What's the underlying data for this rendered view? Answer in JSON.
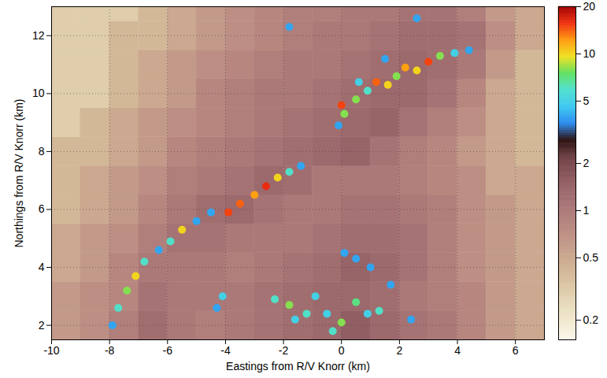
{
  "chart_data": {
    "type": "heatmap",
    "x_label": "Eastings from R/V Knorr (km)",
    "y_label": "Northings from R/V Knorr (km)",
    "xlim": [
      -10,
      7
    ],
    "ylim": [
      1.5,
      13
    ],
    "xticks": [
      -10,
      -8,
      -6,
      -4,
      -2,
      0,
      2,
      4,
      6
    ],
    "yticks": [
      2,
      4,
      6,
      8,
      10,
      12
    ],
    "grid": true,
    "cells": {
      "x_edges": [
        -10,
        -9,
        -8,
        -7,
        -6,
        -5,
        -4,
        -3,
        -2,
        -1,
        0,
        1,
        2,
        3,
        4,
        5,
        6,
        7
      ],
      "y_edges": [
        1.5,
        2.5,
        3.5,
        4.5,
        5.5,
        6.5,
        7.5,
        8.5,
        9.5,
        10.5,
        11.5,
        12.5,
        13
      ],
      "values": [
        [
          0.6,
          0.7,
          0.9,
          1.2,
          1.0,
          0.9,
          1.0,
          1.1,
          1.2,
          1.3,
          1.5,
          1.3,
          1.1,
          1.0,
          0.8,
          0.6,
          0.5
        ],
        [
          0.6,
          0.7,
          0.8,
          1.1,
          1.0,
          1.0,
          1.0,
          1.1,
          1.2,
          1.3,
          1.3,
          1.2,
          1.0,
          0.9,
          0.8,
          0.6,
          0.5
        ],
        [
          0.5,
          0.6,
          0.8,
          1.0,
          1.0,
          1.0,
          0.9,
          1.0,
          1.1,
          1.2,
          1.4,
          1.3,
          1.1,
          0.9,
          0.7,
          0.6,
          0.5
        ],
        [
          0.5,
          0.6,
          0.7,
          0.9,
          1.1,
          1.1,
          1.0,
          1.0,
          1.0,
          1.1,
          1.2,
          1.2,
          1.1,
          0.9,
          0.7,
          0.6,
          0.5
        ],
        [
          0.4,
          0.5,
          0.6,
          0.8,
          1.0,
          1.2,
          1.3,
          1.1,
          1.0,
          1.0,
          1.1,
          1.1,
          1.0,
          0.9,
          0.7,
          0.6,
          0.5
        ],
        [
          0.4,
          0.5,
          0.6,
          0.7,
          0.9,
          1.0,
          1.1,
          1.3,
          1.2,
          1.0,
          1.0,
          1.0,
          0.9,
          0.8,
          0.7,
          0.5,
          0.5
        ],
        [
          0.4,
          0.4,
          0.5,
          0.6,
          0.8,
          0.9,
          1.0,
          1.1,
          1.2,
          1.3,
          1.4,
          1.1,
          0.9,
          0.8,
          0.6,
          0.5,
          0.4
        ],
        [
          0.3,
          0.4,
          0.5,
          0.6,
          0.7,
          0.8,
          0.9,
          1.0,
          1.1,
          1.2,
          1.3,
          1.4,
          1.1,
          0.9,
          0.7,
          0.5,
          0.4
        ],
        [
          0.3,
          0.3,
          0.4,
          0.5,
          0.6,
          0.8,
          0.9,
          1.0,
          1.0,
          1.1,
          1.2,
          1.3,
          1.3,
          1.1,
          0.8,
          0.5,
          0.4
        ],
        [
          0.3,
          0.3,
          0.4,
          0.5,
          0.6,
          0.7,
          0.8,
          0.9,
          1.0,
          1.0,
          1.1,
          1.2,
          1.3,
          1.2,
          1.0,
          0.6,
          0.4
        ],
        [
          0.3,
          0.3,
          0.4,
          0.4,
          0.5,
          0.6,
          0.7,
          0.8,
          0.9,
          1.0,
          1.0,
          1.1,
          1.2,
          1.2,
          1.1,
          0.7,
          0.5
        ],
        [
          0.3,
          0.3,
          0.3,
          0.4,
          0.5,
          0.6,
          0.7,
          0.8,
          0.9,
          0.9,
          1.0,
          1.0,
          1.1,
          1.1,
          0.9,
          0.6,
          0.5
        ]
      ]
    },
    "hotspots": {
      "x": [
        -7.9,
        -7.7,
        -7.4,
        -7.1,
        -6.8,
        -6.3,
        -5.9,
        -5.5,
        -5.0,
        -4.5,
        -3.9,
        -3.5,
        -3.0,
        -2.6,
        -2.2,
        -1.8,
        -1.4,
        -0.1,
        0.1,
        0.0,
        0.5,
        0.9,
        1.2,
        1.6,
        1.9,
        2.2,
        2.6,
        3.0,
        3.4,
        3.9,
        4.4,
        0.6,
        1.5,
        2.6,
        -1.8,
        -4.1,
        -4.3,
        -2.3,
        -1.8,
        -1.6,
        -1.2,
        -0.5,
        0.0,
        0.5,
        0.9,
        1.3,
        -0.9,
        0.1,
        0.5,
        1.0,
        1.7,
        2.4,
        -0.3
      ],
      "y": [
        2.0,
        2.6,
        3.2,
        3.7,
        4.2,
        4.6,
        4.9,
        5.3,
        5.6,
        5.9,
        5.9,
        6.2,
        6.5,
        6.8,
        7.1,
        7.3,
        7.5,
        8.9,
        9.3,
        9.6,
        9.8,
        10.1,
        10.4,
        10.3,
        10.6,
        10.9,
        10.8,
        11.1,
        11.3,
        11.4,
        11.5,
        10.4,
        11.2,
        12.6,
        12.3,
        3.0,
        2.6,
        2.9,
        2.7,
        2.2,
        2.4,
        2.4,
        2.1,
        2.8,
        2.4,
        2.5,
        3.0,
        4.5,
        4.3,
        4.0,
        3.4,
        2.2,
        1.8
      ],
      "values": [
        4,
        6,
        8,
        10,
        6,
        4,
        6,
        10,
        4,
        4,
        15,
        14,
        12,
        16,
        10,
        6,
        4,
        4,
        8,
        15,
        8,
        6,
        14,
        10,
        8,
        12,
        10,
        15,
        8,
        5,
        4,
        5,
        4,
        4,
        4,
        5,
        4,
        6,
        8,
        5,
        6,
        5,
        8,
        7,
        5,
        6,
        5,
        4,
        4,
        4,
        4,
        4,
        6
      ]
    },
    "colorbar": {
      "lim": [
        0.15,
        20
      ],
      "ticks": [
        0.2,
        0.5,
        1,
        2,
        5,
        10,
        20
      ],
      "log": true,
      "colors": [
        "#fbf7ea",
        "#f3ead2",
        "#e8dcbd",
        "#ddcaa8",
        "#d3b898",
        "#caa78e",
        "#c09486",
        "#b5847e",
        "#a87576",
        "#99666a",
        "#865459",
        "#6c3e42",
        "#2a1010",
        "#2b8cf0",
        "#3cc8f0",
        "#50e0d0",
        "#60e060",
        "#f0e020",
        "#ff9a10",
        "#f03010",
        "#a00000"
      ]
    }
  }
}
